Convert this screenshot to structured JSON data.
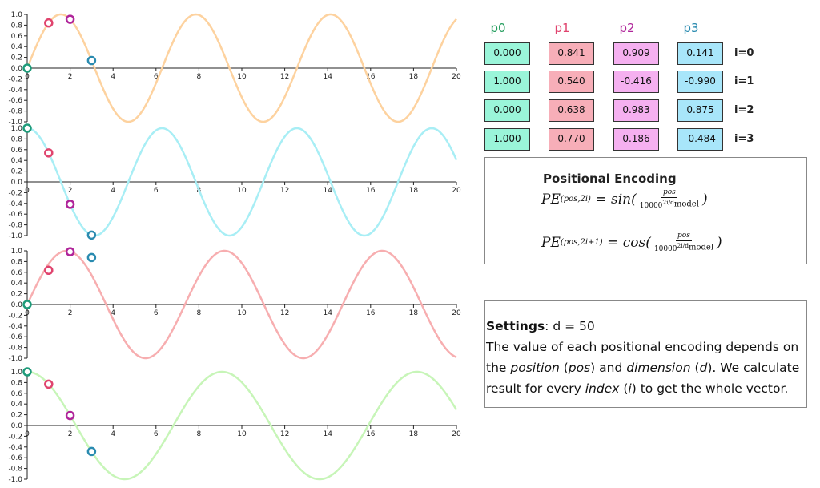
{
  "chart_data": [
    {
      "type": "line",
      "title": "",
      "xlabel": "",
      "ylabel": "",
      "function": "sin(x)",
      "color": "#fdd29f",
      "xlim": [
        0,
        20
      ],
      "ylim": [
        -1.0,
        1.0
      ],
      "x_ticks": [
        "0",
        "2",
        "4",
        "6",
        "8",
        "10",
        "12",
        "14",
        "16",
        "18",
        "20"
      ],
      "y_ticks": [
        "1.0",
        "0.8",
        "0.6",
        "0.4",
        "0.2",
        "0.0",
        "-0.2",
        "-0.4",
        "-0.6",
        "-0.8",
        "-1.0"
      ],
      "points": [
        {
          "x": 0,
          "y": 0.0,
          "color": "#1f9b7a"
        },
        {
          "x": 1,
          "y": 0.841,
          "color": "#e0446e"
        },
        {
          "x": 2,
          "y": 0.909,
          "color": "#b0259a"
        },
        {
          "x": 3,
          "y": 0.141,
          "color": "#2a8bb0"
        }
      ]
    },
    {
      "type": "line",
      "title": "",
      "xlabel": "",
      "ylabel": "",
      "function": "cos(x)",
      "color": "#a8eef5",
      "xlim": [
        0,
        20
      ],
      "ylim": [
        -1.0,
        1.0
      ],
      "x_ticks": [
        "0",
        "2",
        "4",
        "6",
        "8",
        "10",
        "12",
        "14",
        "16",
        "18",
        "20"
      ],
      "y_ticks": [
        "1.0",
        "0.8",
        "0.6",
        "0.4",
        "0.2",
        "0.0",
        "-0.2",
        "-0.4",
        "-0.6",
        "-0.8",
        "-1.0"
      ],
      "points": [
        {
          "x": 0,
          "y": 1.0,
          "color": "#1f9b7a"
        },
        {
          "x": 1,
          "y": 0.54,
          "color": "#e0446e"
        },
        {
          "x": 2,
          "y": -0.416,
          "color": "#b0259a"
        },
        {
          "x": 3,
          "y": -0.99,
          "color": "#2a8bb0"
        }
      ]
    },
    {
      "type": "line",
      "title": "",
      "xlabel": "",
      "ylabel": "",
      "function": "sin(x/1.17)",
      "color": "#f7aeb0",
      "xlim": [
        0,
        20
      ],
      "ylim": [
        -1.0,
        1.0
      ],
      "x_ticks": [
        "0",
        "2",
        "4",
        "6",
        "8",
        "10",
        "12",
        "14",
        "16",
        "18",
        "20"
      ],
      "y_ticks": [
        "1.0",
        "0.8",
        "0.6",
        "0.4",
        "0.2",
        "0.0",
        "-0.2",
        "-0.4",
        "-0.6",
        "-0.8",
        "-1.0"
      ],
      "points": [
        {
          "x": 0,
          "y": 0.0,
          "color": "#1f9b7a"
        },
        {
          "x": 1,
          "y": 0.638,
          "color": "#e0446e"
        },
        {
          "x": 2,
          "y": 0.983,
          "color": "#b0259a"
        },
        {
          "x": 3,
          "y": 0.875,
          "color": "#2a8bb0"
        }
      ]
    },
    {
      "type": "line",
      "title": "",
      "xlabel": "",
      "ylabel": "",
      "function": "cos(x/1.445)",
      "color": "#c7f5b8",
      "xlim": [
        0,
        20
      ],
      "ylim": [
        -1.0,
        1.0
      ],
      "x_ticks": [
        "0",
        "2",
        "4",
        "6",
        "8",
        "10",
        "12",
        "14",
        "16",
        "18",
        "20"
      ],
      "y_ticks": [
        "1.0",
        "0.8",
        "0.6",
        "0.4",
        "0.2",
        "0.0",
        "-0.2",
        "-0.4",
        "-0.6",
        "-0.8",
        "-1.0"
      ],
      "points": [
        {
          "x": 0,
          "y": 1.0,
          "color": "#1f9b7a"
        },
        {
          "x": 1,
          "y": 0.77,
          "color": "#e0446e"
        },
        {
          "x": 2,
          "y": 0.186,
          "color": "#b0259a"
        },
        {
          "x": 3,
          "y": -0.484,
          "color": "#2a8bb0"
        }
      ]
    }
  ],
  "table": {
    "headers": [
      {
        "label": "p0",
        "color": "#1f9b5a"
      },
      {
        "label": "p1",
        "color": "#e0446e"
      },
      {
        "label": "p2",
        "color": "#b0259a"
      },
      {
        "label": "p3",
        "color": "#2a8bb0"
      }
    ],
    "cell_colors": [
      "#9af5d9",
      "#f7aeb8",
      "#f5b0f0",
      "#a8e6fa"
    ],
    "rows": [
      {
        "label": "i=0",
        "values": [
          "0.000",
          "0.841",
          "0.909",
          "0.141"
        ]
      },
      {
        "label": "i=1",
        "values": [
          "1.000",
          "0.540",
          "-0.416",
          "-0.990"
        ]
      },
      {
        "label": "i=2",
        "values": [
          "0.000",
          "0.638",
          "0.983",
          "0.875"
        ]
      },
      {
        "label": "i=3",
        "values": [
          "1.000",
          "0.770",
          "0.186",
          "-0.484"
        ]
      }
    ]
  },
  "formula": {
    "title": "Positional Encoding",
    "eq1_lhs": "PE",
    "eq1_sub": "(pos,2i)",
    "eq1_fn": "= sin(",
    "eq1_num": "pos",
    "eq1_den": "10000",
    "eq1_exp": "2i/d",
    "eq1_exp_sub": "model",
    "eq1_close": ")",
    "eq2_lhs": "PE",
    "eq2_sub": "(pos,2i+1)",
    "eq2_fn": "= cos(",
    "eq2_num": "pos",
    "eq2_den": "10000",
    "eq2_exp": "2i/d",
    "eq2_exp_sub": "model",
    "eq2_close": ")"
  },
  "settings": {
    "label": "Settings",
    "d_text": ": d = 50",
    "p1": "The value of each positional encoding depends on the ",
    "position": "position",
    "paren1_open": " (",
    "pos": "pos",
    "paren1_close": ") and ",
    "dimension": "dimension",
    "paren2_open": " (",
    "d": "d",
    "p2": "). We calculate result for every ",
    "index": "index",
    "paren3_open": " (",
    "i": "i",
    "p3": ") to get the whole vector."
  }
}
